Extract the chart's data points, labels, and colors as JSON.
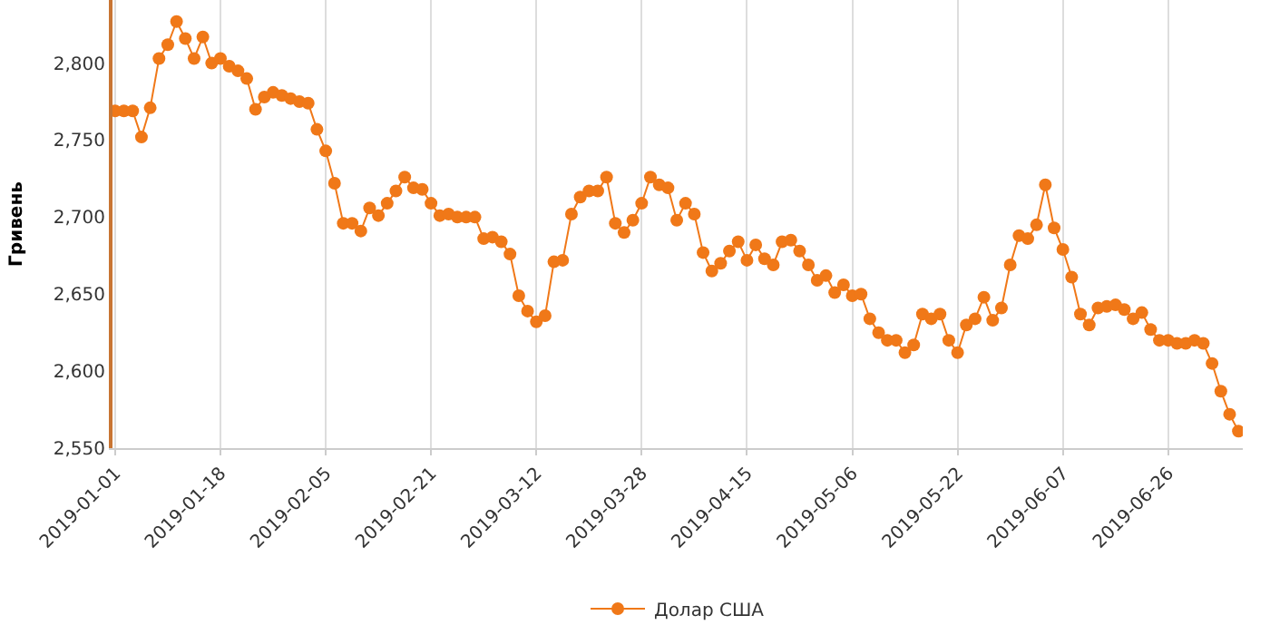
{
  "chart_data": {
    "type": "line",
    "ylabel": "Гривень",
    "categories": [
      "2019-01-01",
      null,
      null,
      null,
      null,
      null,
      null,
      null,
      null,
      null,
      null,
      null,
      "2019-01-18",
      null,
      null,
      null,
      null,
      null,
      null,
      null,
      null,
      null,
      null,
      null,
      "2019-02-05",
      null,
      null,
      null,
      null,
      null,
      null,
      null,
      null,
      null,
      null,
      null,
      "2019-02-21",
      null,
      null,
      null,
      null,
      null,
      null,
      null,
      null,
      null,
      null,
      null,
      "2019-03-12",
      null,
      null,
      null,
      null,
      null,
      null,
      null,
      null,
      null,
      null,
      null,
      "2019-03-28",
      null,
      null,
      null,
      null,
      null,
      null,
      null,
      null,
      null,
      null,
      null,
      "2019-04-15",
      null,
      null,
      null,
      null,
      null,
      null,
      null,
      null,
      null,
      null,
      null,
      "2019-05-06",
      null,
      null,
      null,
      null,
      null,
      null,
      null,
      null,
      null,
      null,
      null,
      "2019-05-22",
      null,
      null,
      null,
      null,
      null,
      null,
      null,
      null,
      null,
      null,
      null,
      "2019-06-07",
      null,
      null,
      null,
      null,
      null,
      null,
      null,
      null,
      null,
      null,
      null,
      "2019-06-26",
      null,
      null,
      null,
      null,
      null,
      null,
      null,
      null
    ],
    "series": [
      {
        "name": "Долар США",
        "color": "#f07818",
        "values": [
          2769,
          2769,
          2769,
          2752,
          2771,
          2803,
          2812,
          2827,
          2816,
          2803,
          2817,
          2800,
          2803,
          2798,
          2795,
          2790,
          2770,
          2778,
          2781,
          2779,
          2777,
          2775,
          2774,
          2757,
          2743,
          2722,
          2696,
          2696,
          2691,
          2706,
          2701,
          2709,
          2717,
          2726,
          2719,
          2718,
          2709,
          2701,
          2702,
          2700,
          2700,
          2700,
          2686,
          2687,
          2684,
          2676,
          2649,
          2639,
          2632,
          2636,
          2671,
          2672,
          2702,
          2713,
          2717,
          2717,
          2726,
          2696,
          2690,
          2698,
          2709,
          2726,
          2721,
          2719,
          2698,
          2709,
          2702,
          2677,
          2665,
          2670,
          2678,
          2684,
          2672,
          2682,
          2673,
          2669,
          2684,
          2685,
          2678,
          2669,
          2659,
          2662,
          2651,
          2656,
          2649,
          2650,
          2634,
          2625,
          2620,
          2620,
          2612,
          2617,
          2637,
          2634,
          2637,
          2620,
          2612,
          2630,
          2634,
          2648,
          2633,
          2641,
          2669,
          2688,
          2686,
          2695,
          2721,
          2693,
          2679,
          2661,
          2637,
          2630,
          2641,
          2642,
          2643,
          2640,
          2634,
          2638,
          2627,
          2620,
          2620,
          2618,
          2618,
          2620,
          2618,
          2605,
          2587,
          2572,
          2561
        ]
      }
    ],
    "ylim": [
      2550,
      2841
    ],
    "yticks": [
      {
        "value": 2550,
        "label": "2,550"
      },
      {
        "value": 2600,
        "label": "2,600"
      },
      {
        "value": 2650,
        "label": "2,650"
      },
      {
        "value": 2700,
        "label": "2,700"
      },
      {
        "value": 2750,
        "label": "2,750"
      },
      {
        "value": 2800,
        "label": "2,800"
      }
    ],
    "grid": "x",
    "legend": "bottom",
    "marker": "circle",
    "line_style": "solid"
  }
}
